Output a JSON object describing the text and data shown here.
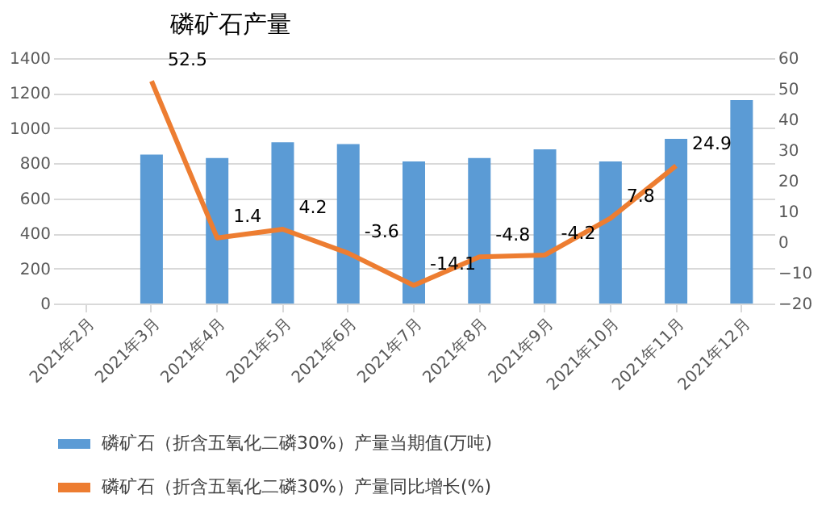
{
  "chart_data": {
    "type": "bar",
    "title": "磷矿石产量",
    "categories": [
      "2021年2月",
      "2021年3月",
      "2021年4月",
      "2021年5月",
      "2021年6月",
      "2021年7月",
      "2021年8月",
      "2021年9月",
      "2021年10月",
      "2021年11月",
      "2021年12月"
    ],
    "series": [
      {
        "name": "磷矿石（折含五氧化二磷30%）产量当期值(万吨)",
        "color": "#5b9bd5",
        "values": [
          null,
          850,
          830,
          920,
          910,
          810,
          830,
          880,
          810,
          940,
          1160
        ]
      },
      {
        "name": "磷矿石（折含五氧化二磷30%）产量同比增长(%)",
        "type": "line",
        "axis": "y2",
        "color": "#ed7d31",
        "values": [
          null,
          52.5,
          1.4,
          4.2,
          -3.6,
          -14.1,
          -4.8,
          -4.2,
          7.8,
          24.9,
          null
        ],
        "value_labels": [
          null,
          "52.5",
          "1.4",
          "4.2",
          "-3.6",
          "-14.1",
          "-4.8",
          "-4.2",
          "7.8",
          "24.9",
          null
        ]
      }
    ],
    "ylim": [
      0,
      1400
    ],
    "yticks": [
      0,
      200,
      400,
      600,
      800,
      1000,
      1200,
      1400
    ],
    "y2lim": [
      -20,
      60
    ],
    "y2ticks": [
      -20,
      -10,
      0,
      10,
      20,
      30,
      40,
      50,
      60
    ],
    "grid": "y",
    "legend": "bottom",
    "marker": "none"
  }
}
